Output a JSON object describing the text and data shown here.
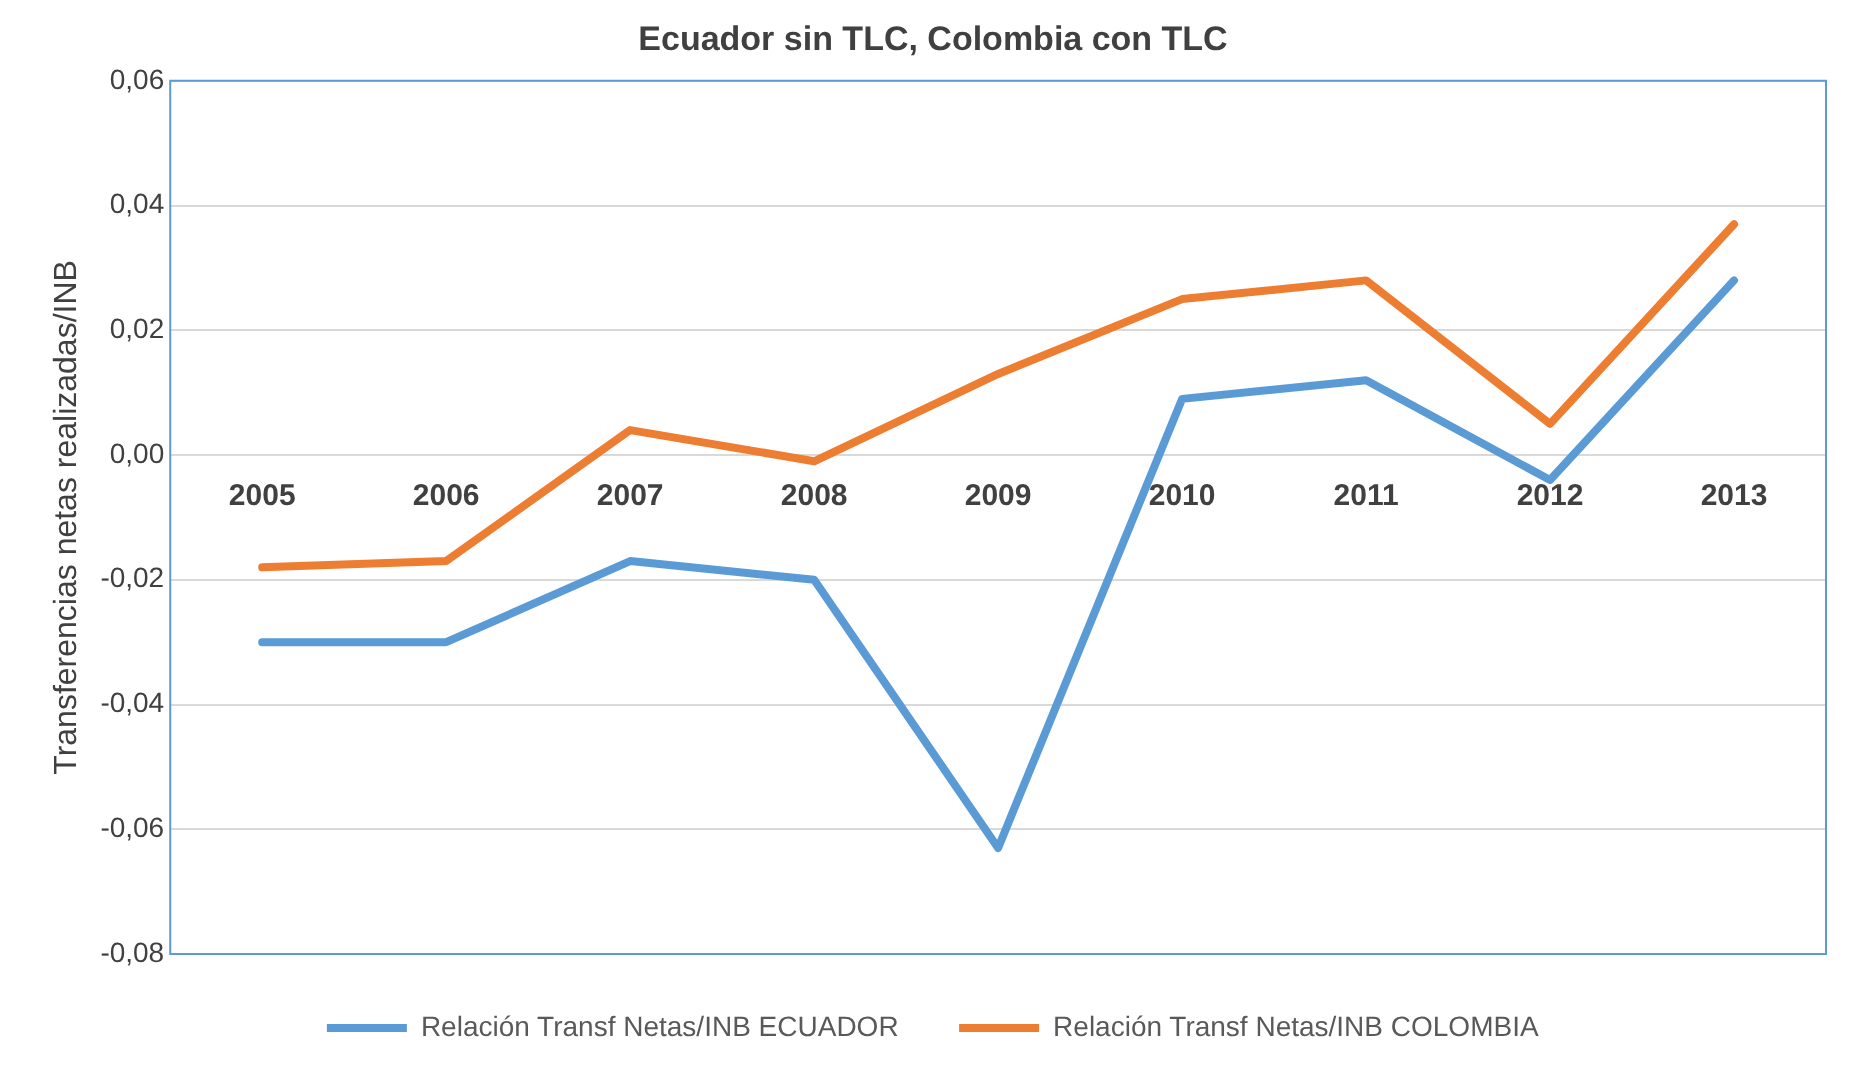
{
  "chart_data": {
    "type": "line",
    "title": "Ecuador sin TLC, Colombia con TLC",
    "ylabel": "Transferencias netas realizadas/INB",
    "categories": [
      "2005",
      "2006",
      "2007",
      "2008",
      "2009",
      "2010",
      "2011",
      "2012",
      "2013"
    ],
    "series": [
      {
        "name": "Relación Transf Netas/INB ECUADOR",
        "color": "#5b9bd5",
        "values": [
          -0.03,
          -0.03,
          -0.017,
          -0.02,
          -0.063,
          0.009,
          0.012,
          -0.004,
          0.028
        ]
      },
      {
        "name": "Relación Transf Netas/INB COLOMBIA",
        "color": "#ed7d31",
        "values": [
          -0.018,
          -0.017,
          0.004,
          -0.001,
          0.013,
          0.025,
          0.028,
          0.005,
          0.037
        ]
      }
    ],
    "ylim": [
      -0.08,
      0.06
    ],
    "yticks": [
      {
        "value": -0.08,
        "label": "-0,08"
      },
      {
        "value": -0.06,
        "label": "-0,06"
      },
      {
        "value": -0.04,
        "label": "-0,04"
      },
      {
        "value": -0.02,
        "label": "-0,02"
      },
      {
        "value": 0,
        "label": "0,00"
      },
      {
        "value": 0.02,
        "label": "0,02"
      },
      {
        "value": 0.04,
        "label": "0,04"
      },
      {
        "value": 0.06,
        "label": "0,06"
      }
    ],
    "grid": "y",
    "legend": "bottom",
    "marker": "none",
    "line_style": "solid"
  }
}
